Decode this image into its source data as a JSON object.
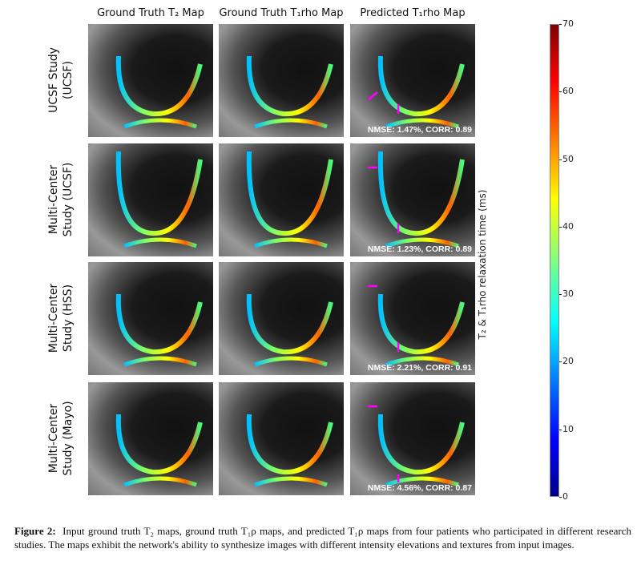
{
  "columns": [
    "Ground Truth T₂ Map",
    "Ground Truth T₁rho Map",
    "Predicted T₁rho Map"
  ],
  "rows": [
    {
      "label1": "UCSF Study",
      "label2": "(UCSF)",
      "metric": "NMSE: 1.47%, CORR: 0.89"
    },
    {
      "label1": "Multi-Center",
      "label2": "Study (UCSF)",
      "metric": "NMSE: 1.23%, CORR: 0.89"
    },
    {
      "label1": "Multi-Center",
      "label2": "Study (HSS)",
      "metric": "NMSE: 2.21%, CORR: 0.91"
    },
    {
      "label1": "Multi-Center",
      "label2": "Study (Mayo)",
      "metric": "NMSE: 4.56%, CORR: 0.87"
    }
  ],
  "colorbar": {
    "label": "T₂ & T₁rho relaxation time (ms)",
    "ticks": [
      "70",
      "60",
      "50",
      "40",
      "30",
      "20",
      "10",
      "0"
    ],
    "range": [
      0,
      70
    ],
    "colormap": "jet"
  },
  "arrow_color": "#ff00ff",
  "caption": {
    "label": "Figure 2:",
    "text": "Input ground truth T₂ maps, ground truth T₁ρ maps, and predicted T₁ρ maps from four patients who participated in different research studies. The maps exhibit the network's ability to synthesize images with different intensity elevations and textures from input images."
  }
}
